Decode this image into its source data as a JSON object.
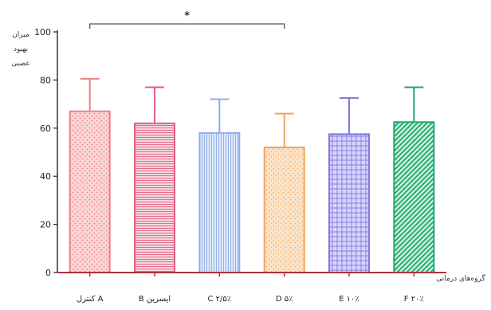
{
  "chart_data": {
    "type": "bar",
    "categories": [
      "کنترل A",
      "B ایسرین",
      "C ۲/۵٪",
      "D ۵٪",
      "E ۱۰٪",
      "F ۲۰٪"
    ],
    "values": [
      67,
      62,
      58,
      52,
      57.5,
      62.5
    ],
    "errors": [
      13.5,
      15,
      14,
      14,
      15,
      14.5
    ],
    "ylim": [
      0,
      100
    ],
    "yticks": [
      0,
      20,
      40,
      60,
      80,
      100
    ],
    "ylabel_lines": [
      "میزان",
      "بهبود",
      "عصبی"
    ],
    "xlabel": "گروه‌های درمانی",
    "significance": {
      "from": 0,
      "to": 3,
      "label": "*"
    },
    "colors": {
      "stroke": [
        "#f07f82",
        "#e0607e",
        "#8fb0e6",
        "#efa35b",
        "#8277e0",
        "#1fa66f"
      ],
      "fill": [
        "#fbd6d7",
        "#f7d6e0",
        "#dde6fb",
        "#fbe3c8",
        "#d6d4fb",
        "#c9f0dc"
      ],
      "axis": "#b03040"
    },
    "patterns": [
      "dots",
      "hlines",
      "vlines",
      "dots-fine",
      "grid",
      "diag"
    ]
  }
}
